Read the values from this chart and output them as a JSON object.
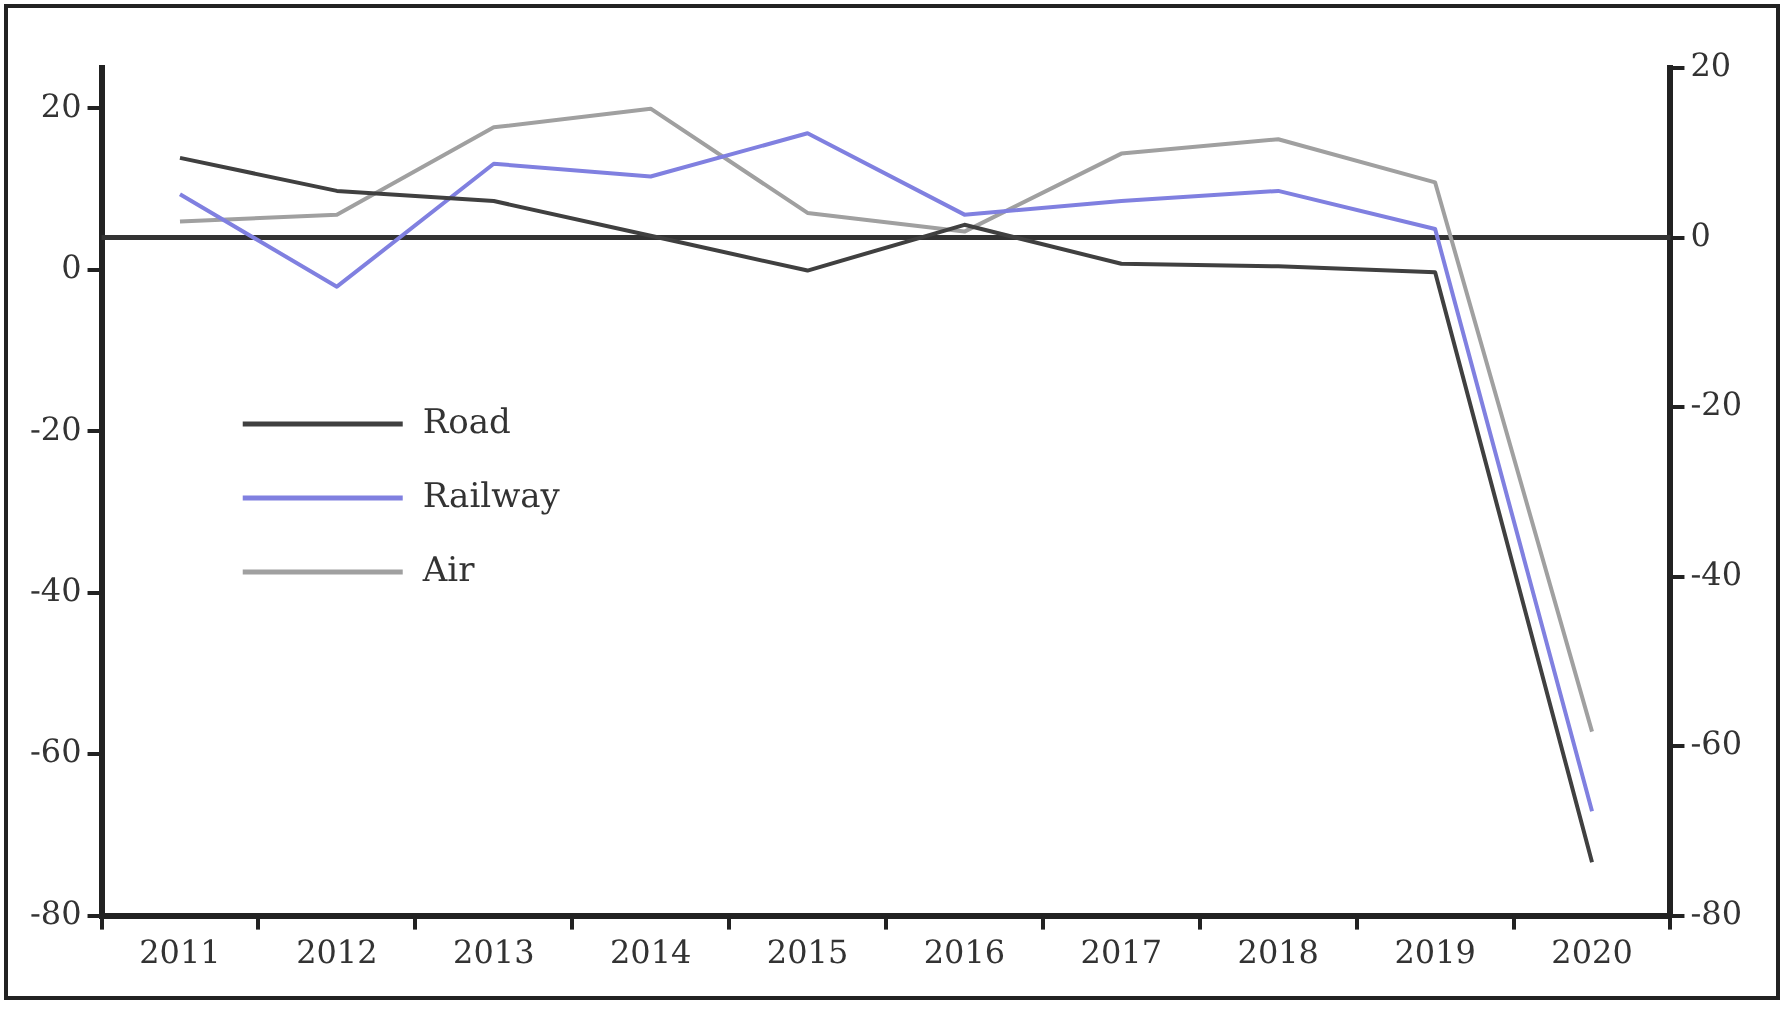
{
  "chart_data": {
    "type": "line",
    "categories": [
      "2011",
      "2012",
      "2013",
      "2014",
      "2015",
      "2016",
      "2017",
      "2018",
      "2019",
      "2020"
    ],
    "series": [
      {
        "name": "Road",
        "color": "#404040",
        "axis": "y2",
        "values": [
          9.4,
          5.5,
          4.3,
          0.2,
          -3.9,
          1.5,
          -3.1,
          -3.4,
          -4.1,
          -73.7
        ]
      },
      {
        "name": "Railway",
        "color": "#8080e0",
        "axis": "y2",
        "values": [
          5.1,
          -5.8,
          8.7,
          7.2,
          12.3,
          2.7,
          4.3,
          5.5,
          1.0,
          -67.7
        ]
      },
      {
        "name": "Air",
        "color": "#a0a0a0",
        "axis": "y2",
        "values": [
          1.9,
          2.7,
          13,
          15.2,
          2.9,
          0.7,
          9.9,
          11.6,
          6.5,
          -58.3
        ]
      }
    ],
    "ylim": [
      -80,
      25
    ],
    "yticks": [
      -80,
      -60,
      -40,
      -20,
      0,
      20
    ],
    "y2lim": [
      -80,
      20
    ],
    "y2ticks": [
      -80,
      -60,
      -40,
      -20,
      0,
      20
    ],
    "ref_lines": [
      {
        "axis": "y2",
        "value": 0,
        "color": "#333333"
      }
    ],
    "grid": false,
    "legend": "left",
    "marker": "none",
    "line_style": "solid"
  }
}
